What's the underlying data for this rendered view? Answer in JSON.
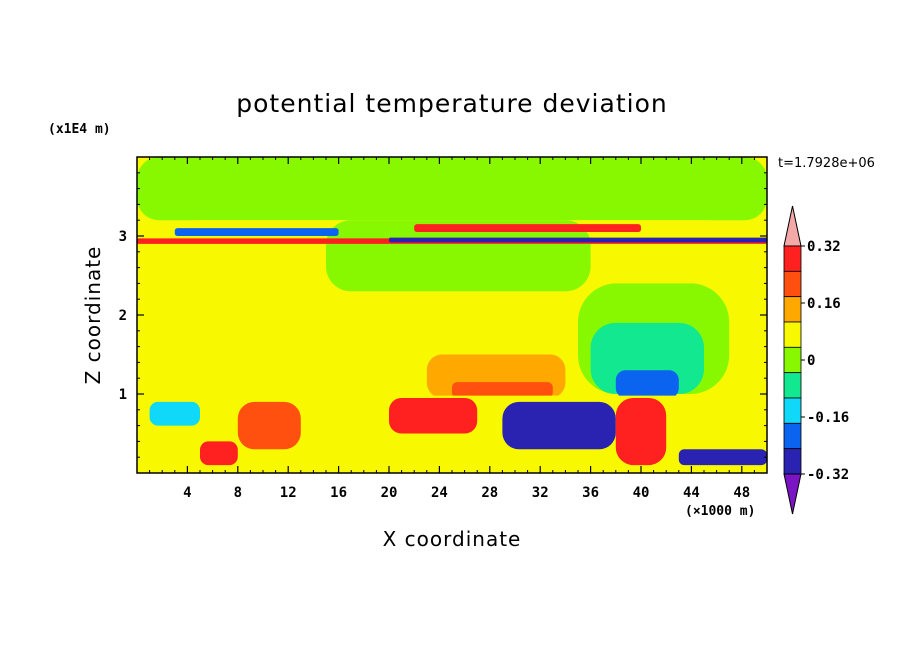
{
  "chart_data": {
    "type": "heatmap",
    "title": "potential temperature deviation",
    "xlabel": "X coordinate",
    "ylabel": "Z coordinate",
    "x_unit": "(×1000 m)",
    "y_unit": "(x1E4 m)",
    "time_label": "t=1.7928e+06",
    "xlim": [
      0,
      50
    ],
    "ylim": [
      0,
      4
    ],
    "x_ticks": [
      4,
      8,
      12,
      16,
      20,
      24,
      28,
      32,
      36,
      40,
      44,
      48
    ],
    "y_ticks": [
      1,
      2,
      3
    ],
    "colorbar": {
      "levels": [
        -0.4,
        -0.32,
        -0.24,
        -0.16,
        -0.08,
        0,
        0.08,
        0.16,
        0.24,
        0.32,
        0.4
      ],
      "labels": [
        "0.32",
        "0.16",
        "0",
        "-0.16",
        "-0.32"
      ],
      "label_values": [
        0.32,
        0.16,
        0,
        -0.16,
        -0.32
      ],
      "colors": [
        "#7a14c4",
        "#2a22b0",
        "#0a64f0",
        "#10d8f8",
        "#12e890",
        "#88f800",
        "#f8f800",
        "#ffa800",
        "#ff5010",
        "#ff2020",
        "#f4a8a8"
      ]
    },
    "regions": [
      {
        "xmin": 0,
        "xmax": 50,
        "zmin": 0,
        "zmax": 4,
        "value": 0.02
      },
      {
        "xmin": 0,
        "xmax": 50,
        "zmin": 3.2,
        "zmax": 4,
        "value": -0.03
      },
      {
        "xmin": 0,
        "xmax": 50,
        "zmin": 0.9,
        "zmax": 3.2,
        "value": 0.05
      },
      {
        "xmin": 15,
        "xmax": 36,
        "zmin": 2.3,
        "zmax": 3.2,
        "value": -0.03
      },
      {
        "xmin": 35,
        "xmax": 47,
        "zmin": 1.0,
        "zmax": 2.4,
        "value": -0.05
      },
      {
        "xmin": 36,
        "xmax": 45,
        "zmin": 1.0,
        "zmax": 1.9,
        "value": -0.12
      },
      {
        "xmin": 38,
        "xmax": 43,
        "zmin": 0.95,
        "zmax": 1.3,
        "value": -0.25
      },
      {
        "xmin": 23,
        "xmax": 34,
        "zmin": 0.95,
        "zmax": 1.5,
        "value": 0.13
      },
      {
        "xmin": 25,
        "xmax": 33,
        "zmin": 0.95,
        "zmax": 1.15,
        "value": 0.2
      },
      {
        "xmin": 0,
        "xmax": 50,
        "zmin": 2.9,
        "zmax": 2.97,
        "value": 0.35
      },
      {
        "xmin": 20,
        "xmax": 50,
        "zmin": 2.92,
        "zmax": 2.98,
        "value": -0.38
      },
      {
        "xmin": 3,
        "xmax": 16,
        "zmin": 3.0,
        "zmax": 3.1,
        "value": -0.3
      },
      {
        "xmin": 22,
        "xmax": 40,
        "zmin": 3.05,
        "zmax": 3.15,
        "value": 0.25
      },
      {
        "xmin": 0,
        "xmax": 50,
        "zmin": 0,
        "zmax": 0.98,
        "value": 0.05
      },
      {
        "xmin": 29,
        "xmax": 38,
        "zmin": 0.3,
        "zmax": 0.9,
        "value": -0.38
      },
      {
        "xmin": 38,
        "xmax": 42,
        "zmin": 0.1,
        "zmax": 0.95,
        "value": 0.3
      },
      {
        "xmin": 5,
        "xmax": 8,
        "zmin": 0.1,
        "zmax": 0.4,
        "value": 0.38
      },
      {
        "xmin": 1,
        "xmax": 5,
        "zmin": 0.6,
        "zmax": 0.9,
        "value": -0.2
      },
      {
        "xmin": 20,
        "xmax": 27,
        "zmin": 0.5,
        "zmax": 0.95,
        "value": 0.3
      },
      {
        "xmin": 8,
        "xmax": 13,
        "zmin": 0.3,
        "zmax": 0.9,
        "value": 0.2
      },
      {
        "xmin": 43,
        "xmax": 50,
        "zmin": 0.1,
        "zmax": 0.3,
        "value": -0.35
      }
    ]
  }
}
